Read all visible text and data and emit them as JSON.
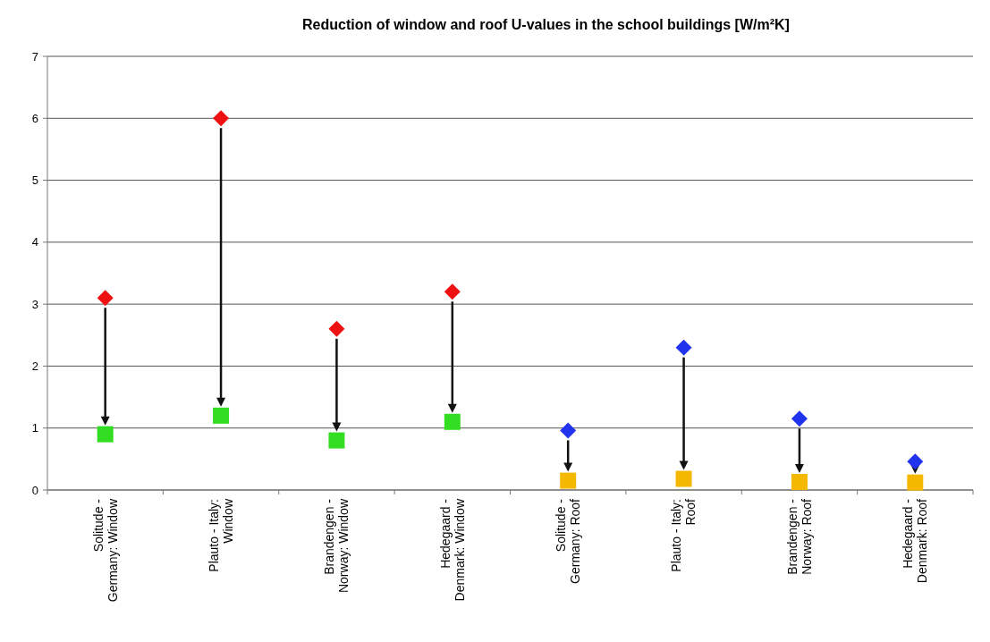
{
  "chart_data": {
    "type": "scatter",
    "title": "Reduction of window and roof U-values in the school buildings [W/m²K]",
    "categories": [
      "Solitude - Germany: Window",
      "Plauto - Italy: Window",
      "Brandengen - Norway: Window",
      "Hedegaard - Denmark: Window",
      "Solitude - Germany: Roof",
      "Plauto - Italy: Roof",
      "Brandengen - Norway: Roof",
      "Hedegaard - Denmark: Roof"
    ],
    "series": [
      {
        "marker": "diamond",
        "colors": [
          "#ee1111",
          "#ee1111",
          "#ee1111",
          "#ee1111",
          "#2233ee",
          "#2233ee",
          "#2233ee",
          "#2233ee"
        ],
        "values": [
          3.1,
          6.0,
          2.6,
          3.2,
          0.96,
          2.3,
          1.15,
          0.46
        ]
      },
      {
        "marker": "square",
        "colors": [
          "#33dd22",
          "#33dd22",
          "#33dd22",
          "#33dd22",
          "#f5b800",
          "#f5b800",
          "#f5b800",
          "#f5b800"
        ],
        "values": [
          0.9,
          1.2,
          0.8,
          1.1,
          0.15,
          0.18,
          0.13,
          0.12
        ]
      }
    ],
    "ylim": [
      0,
      7
    ],
    "yticks": [
      0,
      1,
      2,
      3,
      4,
      5,
      6,
      7
    ],
    "grid": "y"
  }
}
